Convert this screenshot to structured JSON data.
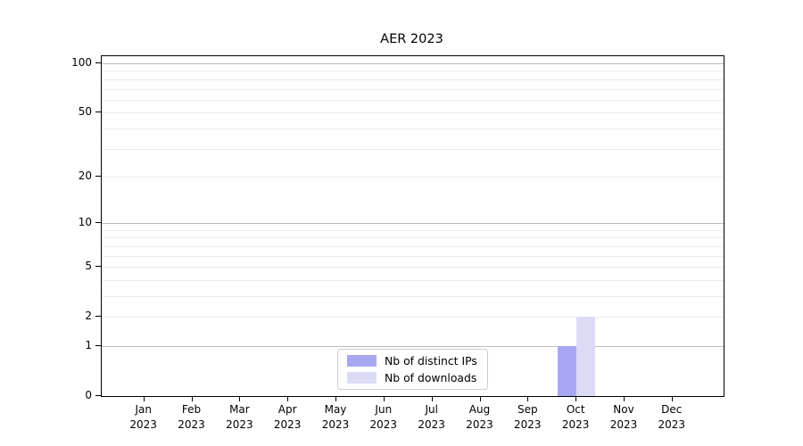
{
  "chart_data": {
    "type": "bar",
    "title": "AER 2023",
    "months": [
      {
        "label": "Jan",
        "sublabel": "2023"
      },
      {
        "label": "Feb",
        "sublabel": "2023"
      },
      {
        "label": "Mar",
        "sublabel": "2023"
      },
      {
        "label": "Apr",
        "sublabel": "2023"
      },
      {
        "label": "May",
        "sublabel": "2023"
      },
      {
        "label": "Jun",
        "sublabel": "2023"
      },
      {
        "label": "Jul",
        "sublabel": "2023"
      },
      {
        "label": "Aug",
        "sublabel": "2023"
      },
      {
        "label": "Sep",
        "sublabel": "2023"
      },
      {
        "label": "Oct",
        "sublabel": "2023"
      },
      {
        "label": "Nov",
        "sublabel": "2023"
      },
      {
        "label": "Dec",
        "sublabel": "2023"
      }
    ],
    "series": [
      {
        "name": "Nb of distinct IPs",
        "color": "#a8a8f2",
        "values": [
          0,
          0,
          0,
          0,
          0,
          0,
          0,
          0,
          0,
          1,
          0,
          0
        ]
      },
      {
        "name": "Nb of downloads",
        "color": "#dbdbf8",
        "values": [
          0,
          0,
          0,
          0,
          0,
          0,
          0,
          0,
          0,
          2,
          0,
          0
        ]
      }
    ],
    "y_axis": {
      "scale": "log1p",
      "ticks": [
        0,
        1,
        2,
        5,
        10,
        20,
        50,
        100
      ],
      "major_gridlines": [
        1,
        10,
        100
      ],
      "minor_gridlines": [
        2,
        3,
        4,
        5,
        6,
        7,
        8,
        9,
        20,
        30,
        40,
        50,
        60,
        70,
        80,
        90
      ],
      "range": [
        0,
        112
      ]
    },
    "xlabel": "",
    "ylabel": "",
    "grid": true,
    "legend": {
      "location": "lower-center-inside"
    }
  },
  "colors": {
    "background": "#ffffff",
    "spine": "#000000",
    "grid_major": "#bdbdbd",
    "grid_minor": "#ebebeb",
    "text": "#000000",
    "legend_border": "#cccccc"
  }
}
